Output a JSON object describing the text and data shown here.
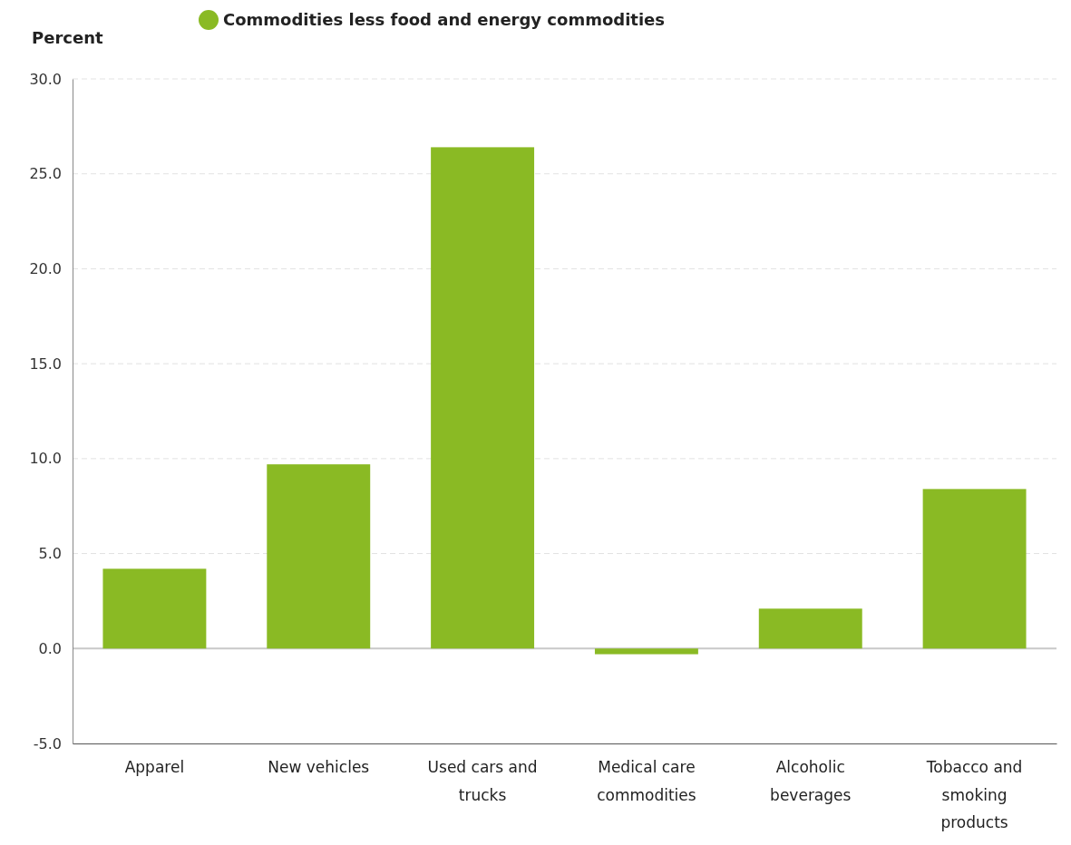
{
  "chart_data": {
    "type": "bar",
    "ylabel": "Percent",
    "categories": [
      "Apparel",
      "New vehicles",
      "Used cars and trucks",
      "Medical care commodities",
      "Alcoholic beverages",
      "Tobacco and smoking products"
    ],
    "series": [
      {
        "name": "Commodities less food and energy commodities",
        "color": "#8aba24",
        "values": [
          4.2,
          9.7,
          26.4,
          -0.3,
          2.1,
          8.4
        ]
      }
    ],
    "ylim": [
      -5,
      30
    ],
    "yticks": [
      {
        "value": -5,
        "label": "-5.0"
      },
      {
        "value": 0,
        "label": "0.0"
      },
      {
        "value": 5,
        "label": "5.0"
      },
      {
        "value": 10,
        "label": "10.0"
      },
      {
        "value": 15,
        "label": "15.0"
      },
      {
        "value": 20,
        "label": "20.0"
      },
      {
        "value": 25,
        "label": "25.0"
      },
      {
        "value": 30,
        "label": "30.0"
      }
    ],
    "grid": "y",
    "legend": "top"
  }
}
